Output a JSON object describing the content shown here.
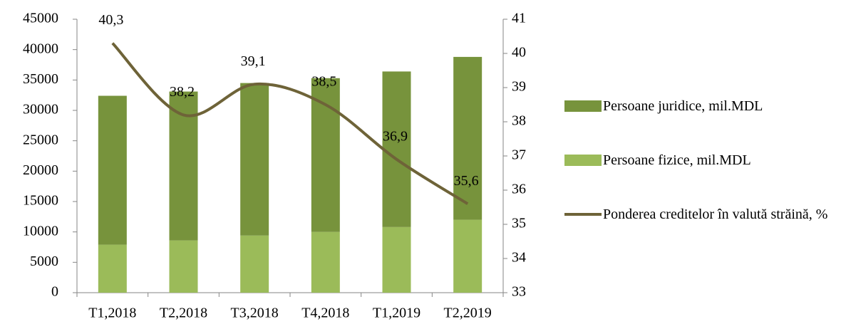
{
  "chart_data": {
    "type": "bar",
    "categories": [
      "T1,2018",
      "T2,2018",
      "T3,2018",
      "T4,2018",
      "T1,2019",
      "T2,2019"
    ],
    "series": [
      {
        "name": "Persoane juridice, mil.MDL",
        "type": "bar",
        "color": "#77933c",
        "values": [
          24500,
          24500,
          25100,
          25300,
          25600,
          26800
        ]
      },
      {
        "name": "Persoane fizice, mil.MDL",
        "type": "bar",
        "color": "#9bbb59",
        "values": [
          7900,
          8600,
          9400,
          10000,
          10800,
          12000
        ]
      },
      {
        "name": "Ponderea creditelor în valută străină, %",
        "type": "line",
        "axis": "y2",
        "color": "#6e6338",
        "values": [
          40.3,
          38.2,
          39.1,
          38.5,
          36.9,
          35.6
        ],
        "value_labels": [
          "40,3",
          "38,2",
          "39,1",
          "38,5",
          "36,9",
          "35,6"
        ]
      }
    ],
    "ylim": [
      0,
      45000
    ],
    "yticks": [
      0,
      5000,
      10000,
      15000,
      20000,
      25000,
      30000,
      35000,
      40000,
      45000
    ],
    "y2lim": [
      33,
      41
    ],
    "y2ticks": [
      33,
      34,
      35,
      36,
      37,
      38,
      39,
      40,
      41
    ],
    "grid": false,
    "legend": "right",
    "stacked": true
  }
}
